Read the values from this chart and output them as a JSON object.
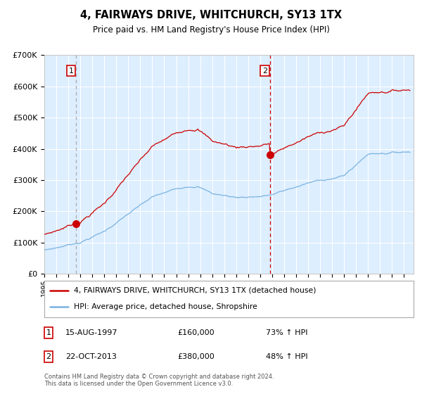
{
  "title": "4, FAIRWAYS DRIVE, WHITCHURCH, SY13 1TX",
  "subtitle": "Price paid vs. HM Land Registry's House Price Index (HPI)",
  "bg_color": "#ddeeff",
  "hpi_color": "#7ab3e0",
  "price_color": "#cc0000",
  "marker_color": "#cc0000",
  "vline1_color": "#aaaaaa",
  "vline2_color": "#cc0000",
  "sale1_date_num": 1997.62,
  "sale1_price": 160000,
  "sale2_date_num": 2013.81,
  "sale2_price": 380000,
  "legend_line1": "4, FAIRWAYS DRIVE, WHITCHURCH, SY13 1TX (detached house)",
  "legend_line2": "HPI: Average price, detached house, Shropshire",
  "ylim": [
    0,
    700000
  ],
  "ytick_vals": [
    0,
    100000,
    200000,
    300000,
    400000,
    500000,
    600000,
    700000
  ],
  "ytick_labels": [
    "£0",
    "£100K",
    "£200K",
    "£300K",
    "£400K",
    "£500K",
    "£600K",
    "£700K"
  ],
  "xstart": 1995.0,
  "xend": 2025.8,
  "footnote": "Contains HM Land Registry data © Crown copyright and database right 2024.\nThis data is licensed under the Open Government Licence v3.0."
}
